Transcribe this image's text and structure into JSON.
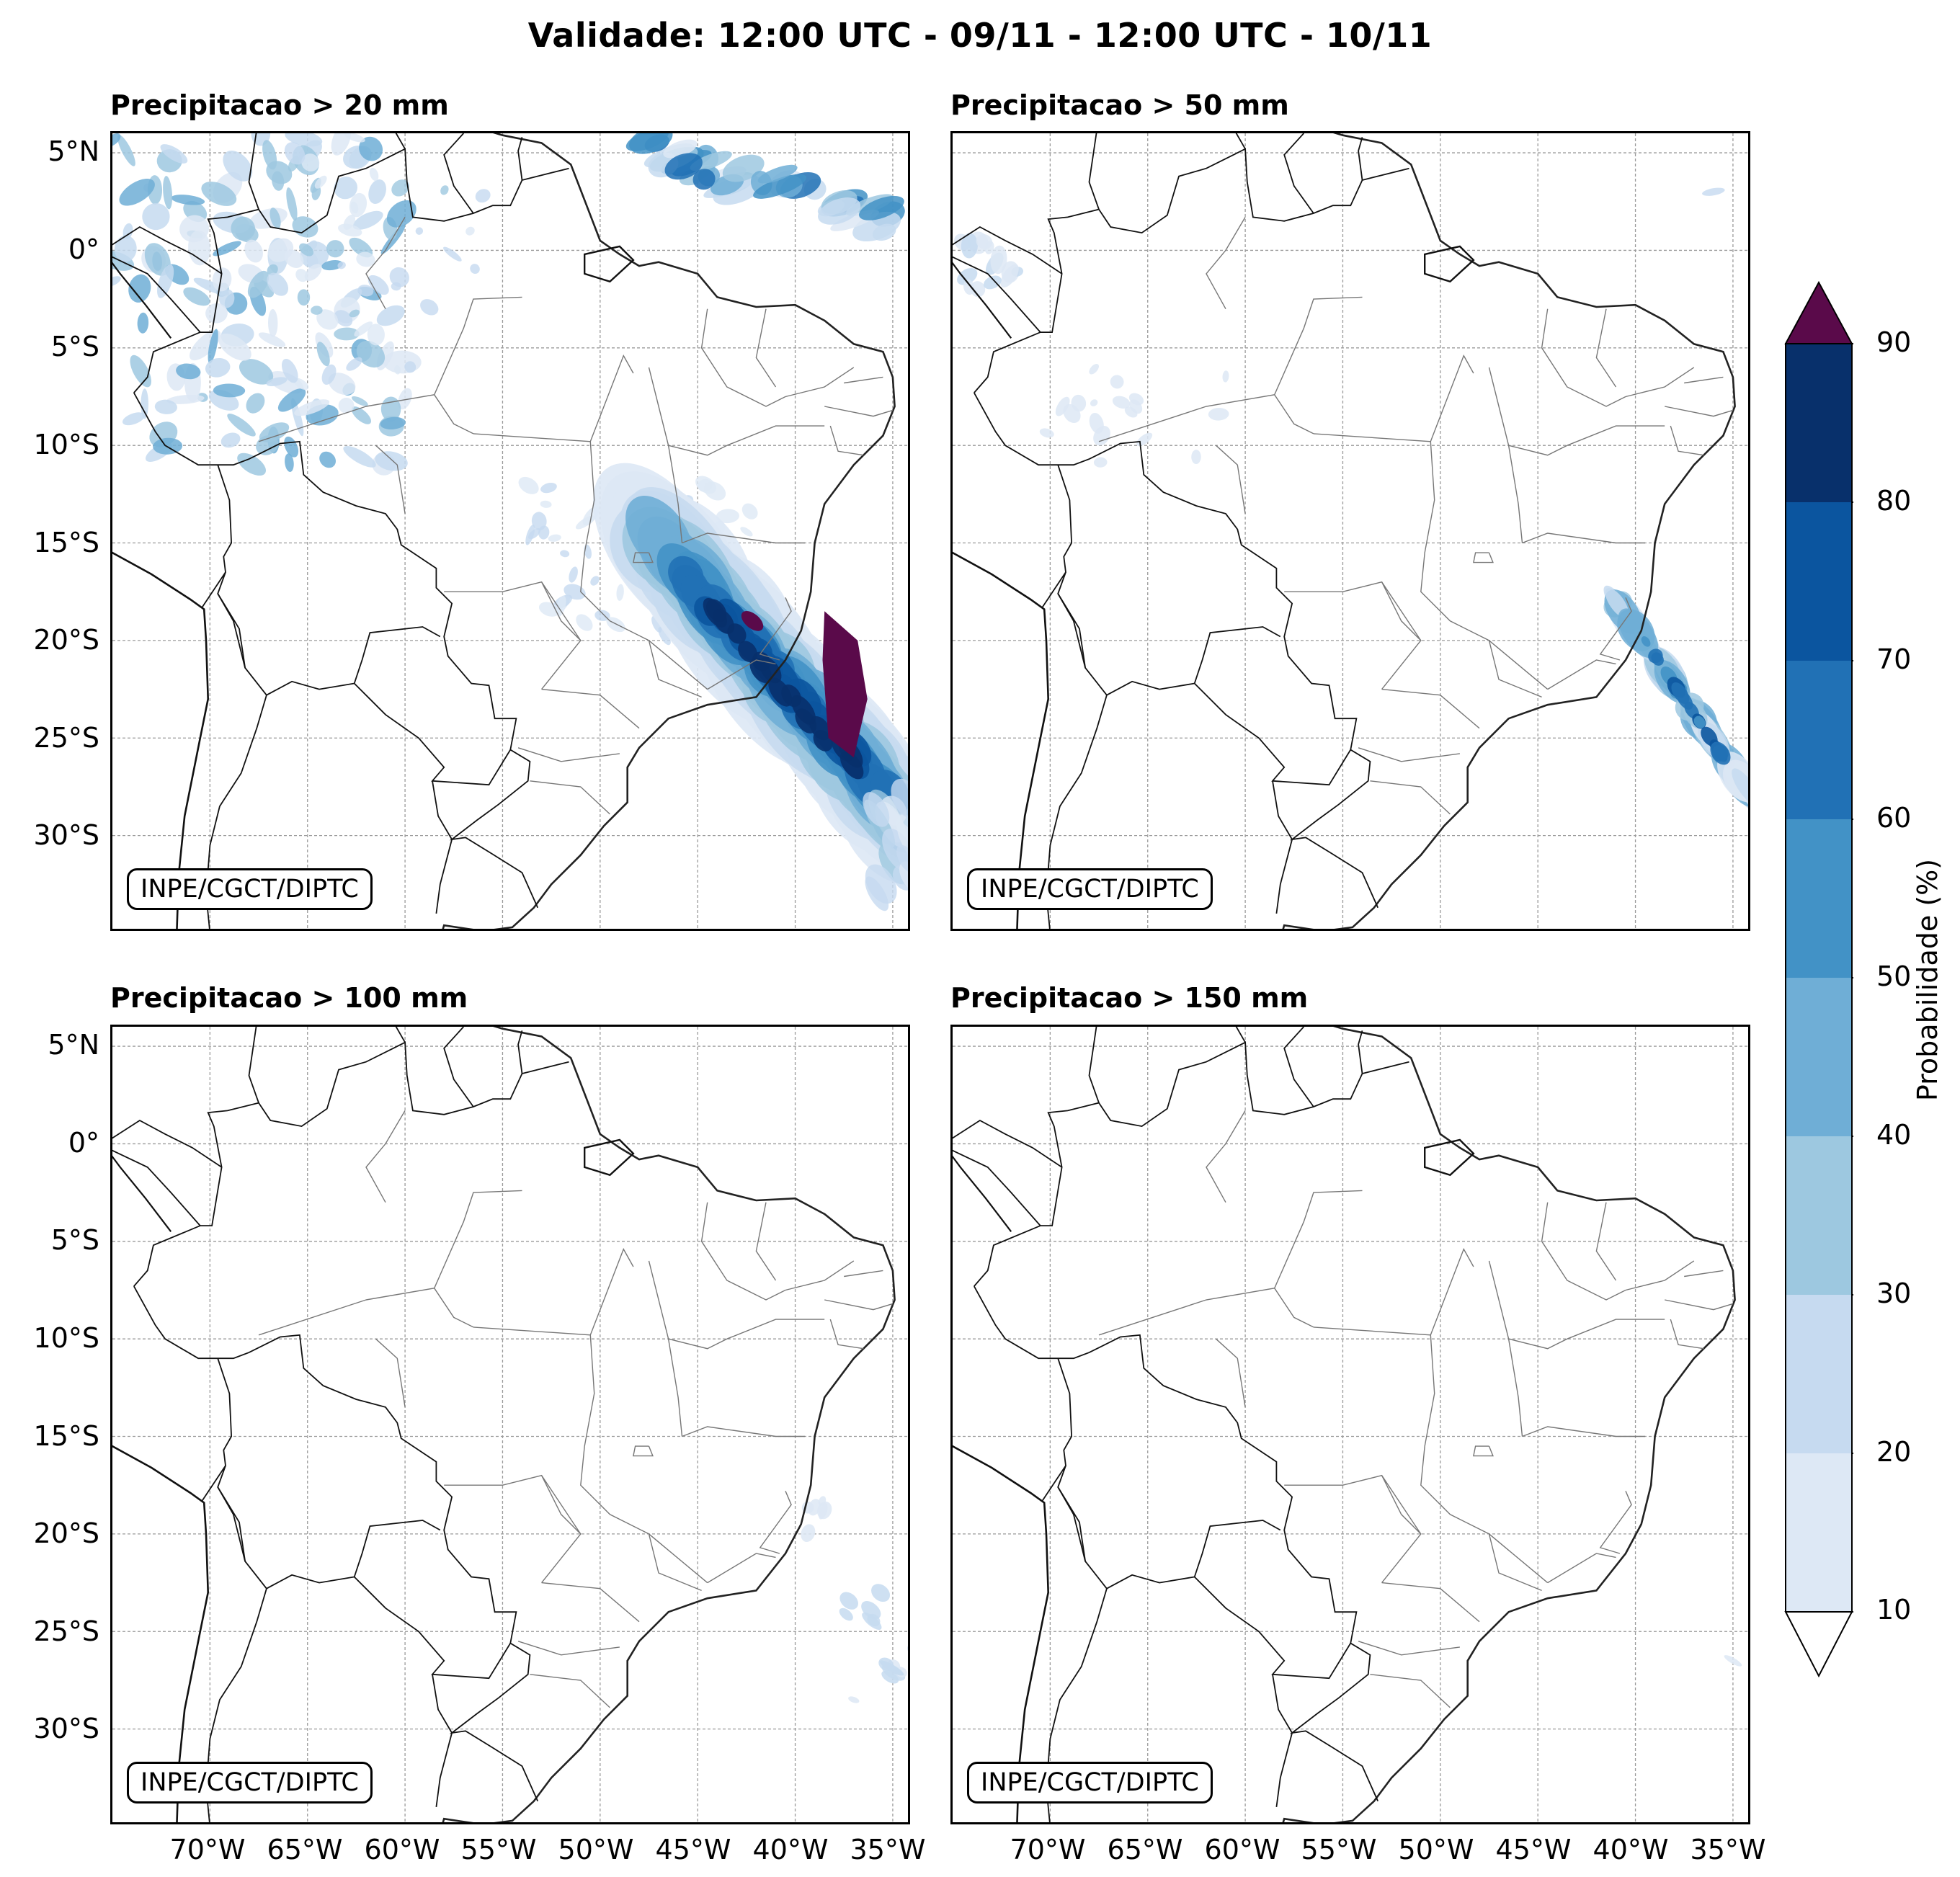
{
  "title": "Validade: 12:00 UTC - 09/11 - 12:00 UTC - 10/11",
  "credit": "INPE/CGCT/DIPTC",
  "panels": [
    {
      "title": "Precipitacao > 20 mm"
    },
    {
      "title": "Precipitacao > 50 mm"
    },
    {
      "title": "Precipitacao > 100 mm"
    },
    {
      "title": "Precipitacao > 150 mm"
    }
  ],
  "lat_labels": [
    "5°N",
    "0°",
    "5°S",
    "10°S",
    "15°S",
    "20°S",
    "25°S",
    "30°S"
  ],
  "lon_labels": [
    "70°W",
    "65°W",
    "60°W",
    "55°W",
    "50°W",
    "45°W",
    "40°W",
    "35°W"
  ],
  "colorbar": {
    "label": "Probabilidade (%)",
    "ticks": [
      "10",
      "20",
      "30",
      "40",
      "50",
      "60",
      "70",
      "80",
      "90"
    ],
    "colors": [
      "#dde8f5",
      "#c6daf0",
      "#9dc8e0",
      "#6faed6",
      "#4292c6",
      "#2171b5",
      "#0b559f",
      "#08306b"
    ],
    "over_color": "#5a0a4a",
    "under_color": "#ffffff"
  }
}
